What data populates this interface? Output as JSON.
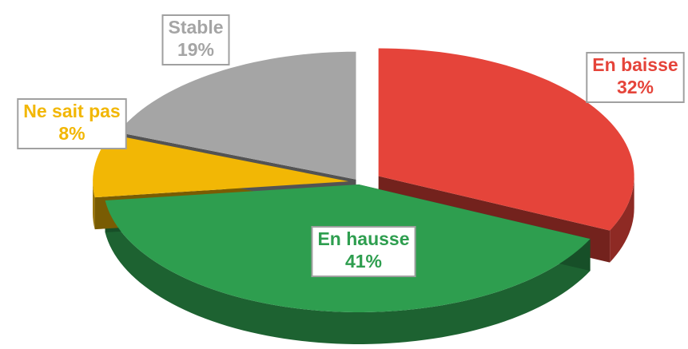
{
  "chart_data": {
    "type": "pie",
    "categories": [
      "En baisse",
      "En hausse",
      "Ne sait pas",
      "Stable"
    ],
    "values": [
      32,
      41,
      8,
      19
    ],
    "value_labels": [
      "32%",
      "41%",
      "8%",
      "19%"
    ],
    "colors": [
      "#e5443a",
      "#2e9e4f",
      "#f2b705",
      "#a5a5a5"
    ]
  }
}
